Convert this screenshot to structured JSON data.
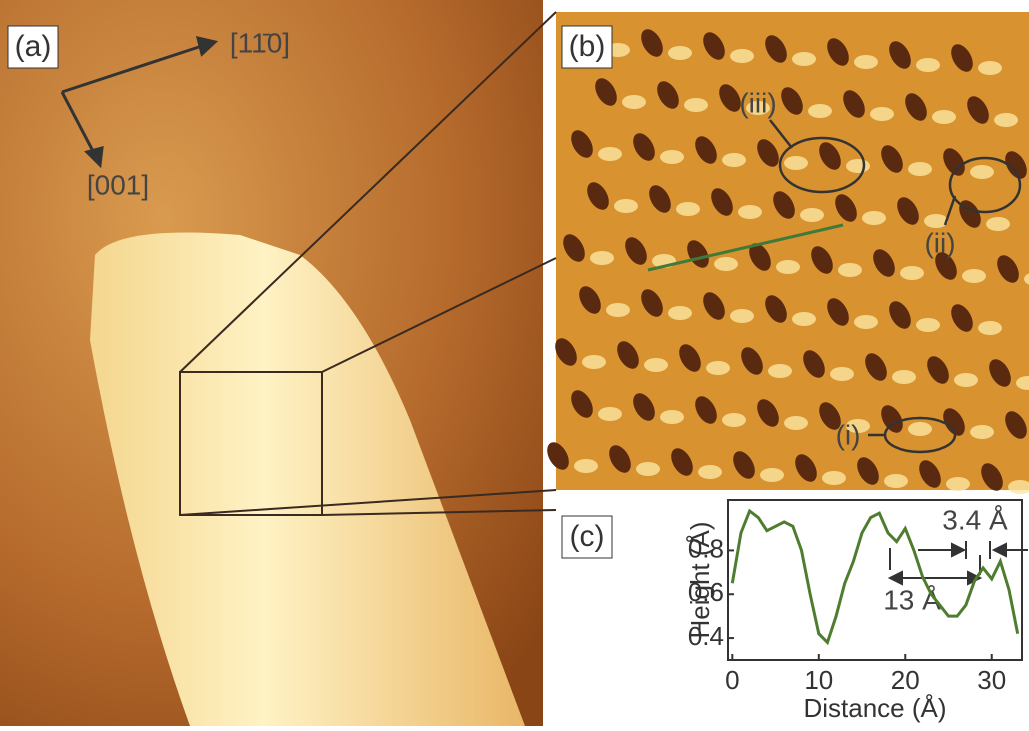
{
  "panel_a": {
    "label": "(a)",
    "direction_1": "[11̄0]",
    "direction_2": "[001]"
  },
  "panel_b": {
    "label": "(b)",
    "site_1": "(i)",
    "site_2": "(ii)",
    "site_3": "(iii)"
  },
  "chart_data": {
    "type": "line",
    "label": "(c)",
    "x_label": "Distance (Å)",
    "y_label": "Height (Å)",
    "x": [
      0,
      1,
      2,
      3,
      4,
      5,
      6,
      7,
      8,
      9,
      10,
      11,
      12,
      13,
      14,
      15,
      16,
      17,
      18,
      19,
      20,
      21,
      22,
      23,
      24,
      25,
      26,
      27,
      28,
      29,
      30,
      31,
      32,
      33
    ],
    "values": [
      0.65,
      0.88,
      0.98,
      0.95,
      0.89,
      0.91,
      0.93,
      0.91,
      0.8,
      0.6,
      0.42,
      0.38,
      0.5,
      0.65,
      0.75,
      0.88,
      0.95,
      0.97,
      0.88,
      0.84,
      0.9,
      0.8,
      0.68,
      0.6,
      0.55,
      0.5,
      0.5,
      0.55,
      0.66,
      0.72,
      0.67,
      0.75,
      0.62,
      0.42
    ],
    "color": "#4e7d2f",
    "xlim": [
      -0.5,
      33.5
    ],
    "ylim": [
      0.3,
      1.03
    ],
    "xticks": [
      0,
      10,
      20,
      30
    ],
    "yticks": [
      0.4,
      0.6,
      0.8
    ],
    "annotations": [
      "3.4 Å",
      "13 Å"
    ]
  }
}
